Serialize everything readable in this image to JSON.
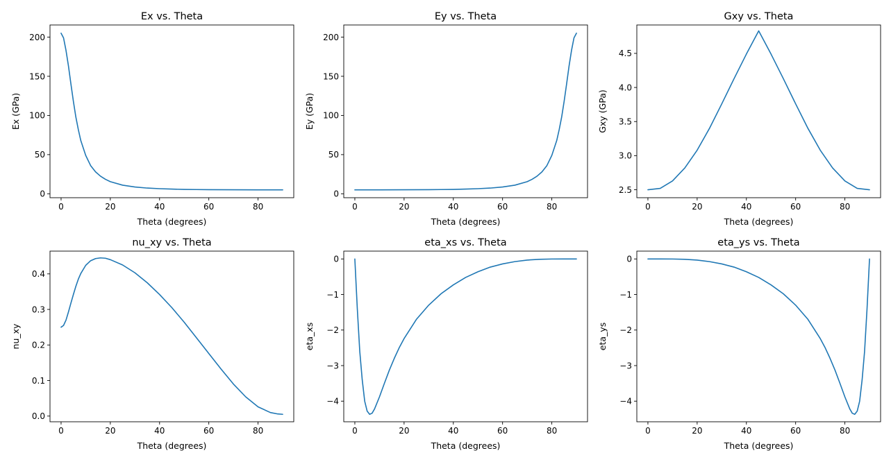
{
  "figure": {
    "line_color": "#1f77b4",
    "background": "#ffffff"
  },
  "chart_data": [
    {
      "type": "line",
      "title": "Ex vs. Theta",
      "xlabel": "Theta (degrees)",
      "ylabel": "Ex (GPa)",
      "xlim": [
        -4.5,
        94.5
      ],
      "ylim": [
        -5.0,
        215.5
      ],
      "xticks": [
        0,
        20,
        40,
        60,
        80
      ],
      "yticks": [
        0,
        50,
        100,
        150,
        200
      ],
      "ytick_labels": [
        "0",
        "50",
        "100",
        "150",
        "200"
      ],
      "series": [
        {
          "x": [
            0,
            1,
            2,
            3,
            4,
            5,
            6,
            7,
            8,
            10,
            12,
            14,
            16,
            18,
            20,
            25,
            30,
            35,
            40,
            45,
            50,
            55,
            60,
            70,
            80,
            90
          ],
          "values": [
            205,
            199,
            183,
            163,
            140,
            118,
            98,
            82,
            68,
            49,
            36,
            28,
            22.5,
            18.5,
            15.5,
            11,
            8.7,
            7.3,
            6.5,
            6.0,
            5.6,
            5.4,
            5.2,
            5.1,
            5.05,
            5.0
          ]
        }
      ]
    },
    {
      "type": "line",
      "title": "Ey vs. Theta",
      "xlabel": "Theta (degrees)",
      "ylabel": "Ey (GPa)",
      "xlim": [
        -4.5,
        94.5
      ],
      "ylim": [
        -5.0,
        215.5
      ],
      "xticks": [
        0,
        20,
        40,
        60,
        80
      ],
      "yticks": [
        0,
        50,
        100,
        150,
        200
      ],
      "ytick_labels": [
        "0",
        "50",
        "100",
        "150",
        "200"
      ],
      "series": [
        {
          "x": [
            0,
            10,
            20,
            30,
            35,
            40,
            45,
            50,
            55,
            60,
            65,
            70,
            72,
            74,
            76,
            78,
            80,
            82,
            83,
            84,
            85,
            86,
            87,
            88,
            89,
            90
          ],
          "values": [
            5.0,
            5.05,
            5.1,
            5.2,
            5.4,
            5.6,
            6.0,
            6.5,
            7.3,
            8.7,
            11,
            15.5,
            18.5,
            22.5,
            28,
            36,
            49,
            68,
            82,
            98,
            118,
            140,
            163,
            183,
            199,
            205
          ]
        }
      ]
    },
    {
      "type": "line",
      "title": "Gxy vs. Theta",
      "xlabel": "Theta (degrees)",
      "ylabel": "Gxy (GPa)",
      "xlim": [
        -4.5,
        94.5
      ],
      "ylim": [
        2.3835,
        4.9165
      ],
      "xticks": [
        0,
        20,
        40,
        60,
        80
      ],
      "yticks": [
        2.5,
        3.0,
        3.5,
        4.0,
        4.5
      ],
      "ytick_labels": [
        "2.5",
        "3.0",
        "3.5",
        "4.0",
        "4.5"
      ],
      "series": [
        {
          "x": [
            0,
            5,
            10,
            15,
            20,
            25,
            30,
            35,
            40,
            45,
            50,
            55,
            60,
            65,
            70,
            75,
            80,
            85,
            90
          ],
          "values": [
            2.5,
            2.52,
            2.63,
            2.82,
            3.08,
            3.4,
            3.76,
            4.13,
            4.49,
            4.83,
            4.49,
            4.13,
            3.76,
            3.4,
            3.08,
            2.82,
            2.63,
            2.52,
            2.5
          ]
        }
      ]
    },
    {
      "type": "line",
      "title": "nu_xy vs. Theta",
      "xlabel": "Theta (degrees)",
      "ylabel": "nu_xy",
      "xlim": [
        -4.5,
        94.5
      ],
      "ylim": [
        -0.016,
        0.464
      ],
      "xticks": [
        0,
        20,
        40,
        60,
        80
      ],
      "yticks": [
        0.0,
        0.1,
        0.2,
        0.3,
        0.4
      ],
      "ytick_labels": [
        "0.0",
        "0.1",
        "0.2",
        "0.3",
        "0.4"
      ],
      "series": [
        {
          "x": [
            0,
            1,
            2,
            3,
            4,
            5,
            6,
            7,
            8,
            10,
            12,
            14,
            16,
            18,
            20,
            25,
            30,
            35,
            40,
            45,
            50,
            55,
            60,
            65,
            70,
            75,
            80,
            85,
            88,
            90
          ],
          "values": [
            0.25,
            0.255,
            0.27,
            0.293,
            0.318,
            0.342,
            0.365,
            0.385,
            0.401,
            0.424,
            0.437,
            0.443,
            0.445,
            0.444,
            0.44,
            0.425,
            0.403,
            0.375,
            0.342,
            0.305,
            0.264,
            0.22,
            0.176,
            0.132,
            0.09,
            0.054,
            0.026,
            0.01,
            0.006,
            0.005
          ]
        }
      ]
    },
    {
      "type": "line",
      "title": "eta_xs vs. Theta",
      "xlabel": "Theta (degrees)",
      "ylabel": "eta_xs",
      "xlim": [
        -4.5,
        94.5
      ],
      "ylim": [
        -4.58,
        0.22
      ],
      "xticks": [
        0,
        20,
        40,
        60,
        80
      ],
      "yticks": [
        0,
        -1,
        -2,
        -3,
        -4
      ],
      "ytick_labels": [
        "0",
        "−1",
        "−2",
        "−3",
        "−4"
      ],
      "series": [
        {
          "x": [
            0,
            1,
            2,
            3,
            4,
            5,
            6,
            7,
            8,
            10,
            12,
            14,
            16,
            18,
            20,
            25,
            30,
            35,
            40,
            45,
            50,
            55,
            60,
            65,
            70,
            75,
            80,
            85,
            90
          ],
          "values": [
            0,
            -1.4,
            -2.6,
            -3.4,
            -4.0,
            -4.28,
            -4.37,
            -4.34,
            -4.22,
            -3.88,
            -3.5,
            -3.13,
            -2.8,
            -2.5,
            -2.24,
            -1.7,
            -1.3,
            -0.98,
            -0.73,
            -0.52,
            -0.36,
            -0.23,
            -0.14,
            -0.075,
            -0.032,
            -0.01,
            -0.002,
            0,
            0
          ]
        }
      ]
    },
    {
      "type": "line",
      "title": "eta_ys vs. Theta",
      "xlabel": "Theta (degrees)",
      "ylabel": "eta_ys",
      "xlim": [
        -4.5,
        94.5
      ],
      "ylim": [
        -4.58,
        0.22
      ],
      "xticks": [
        0,
        20,
        40,
        60,
        80
      ],
      "yticks": [
        0,
        -1,
        -2,
        -3,
        -4
      ],
      "ytick_labels": [
        "0",
        "−1",
        "−2",
        "−3",
        "−4"
      ],
      "series": [
        {
          "x": [
            0,
            5,
            10,
            15,
            20,
            25,
            30,
            35,
            40,
            45,
            50,
            55,
            60,
            65,
            70,
            72,
            74,
            76,
            78,
            80,
            82,
            83,
            84,
            85,
            86,
            87,
            88,
            89,
            90
          ],
          "values": [
            0,
            0,
            -0.002,
            -0.01,
            -0.032,
            -0.075,
            -0.14,
            -0.23,
            -0.36,
            -0.52,
            -0.73,
            -0.98,
            -1.3,
            -1.7,
            -2.24,
            -2.5,
            -2.8,
            -3.13,
            -3.5,
            -3.88,
            -4.22,
            -4.34,
            -4.37,
            -4.28,
            -4.0,
            -3.4,
            -2.6,
            -1.4,
            0
          ]
        }
      ]
    }
  ]
}
